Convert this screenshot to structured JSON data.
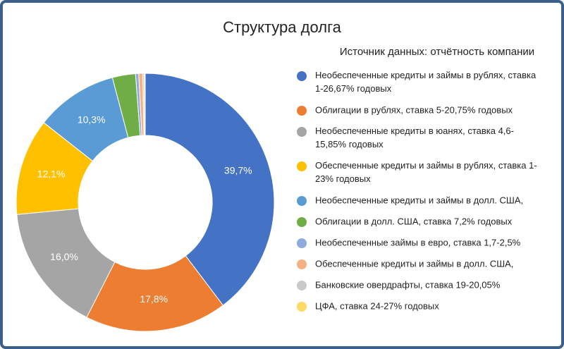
{
  "chart_data": {
    "type": "donut",
    "title": "Структура долга",
    "subtitle": "Источник данных: отчётность компании",
    "categories": [
      "Необеспеченные кредиты и займы в рублях, ставка 1-26,67% годовых",
      "Облигации в рублях, ставка 5-20,75% годовых",
      "Необеспеченные кредиты в юанях, ставка 4,6-15,85% годовых",
      "Обеспеченные кредиты и займы в рублях, ставка 1-23% годовых",
      "Необеспеченные кредиты и займы в долл. США,",
      "Облигации в долл. США, ставка 7,2% годовых",
      "Необеспеченные займы в евро, ставка 1,7-2,5%",
      "Обеспеченные кредиты и займы в долл. США,",
      "Банковские овердрафты, ставка 19-20,05%",
      "ЦФА, ставка 24-27% годовых"
    ],
    "values": [
      39.7,
      17.8,
      16.0,
      12.1,
      10.3,
      2.9,
      0.4,
      0.5,
      0.2,
      0.1
    ],
    "value_labels": [
      "39,7%",
      "17,8%",
      "16,0%",
      "12,1%",
      "10,3%",
      null,
      null,
      null,
      null,
      null
    ],
    "colors": [
      "#4472c4",
      "#ed7d31",
      "#a5a5a5",
      "#ffc000",
      "#5b9bd5",
      "#70ad47",
      "#8faadc",
      "#f4b183",
      "#c9c9c9",
      "#ffd966"
    ],
    "legend": "right"
  }
}
